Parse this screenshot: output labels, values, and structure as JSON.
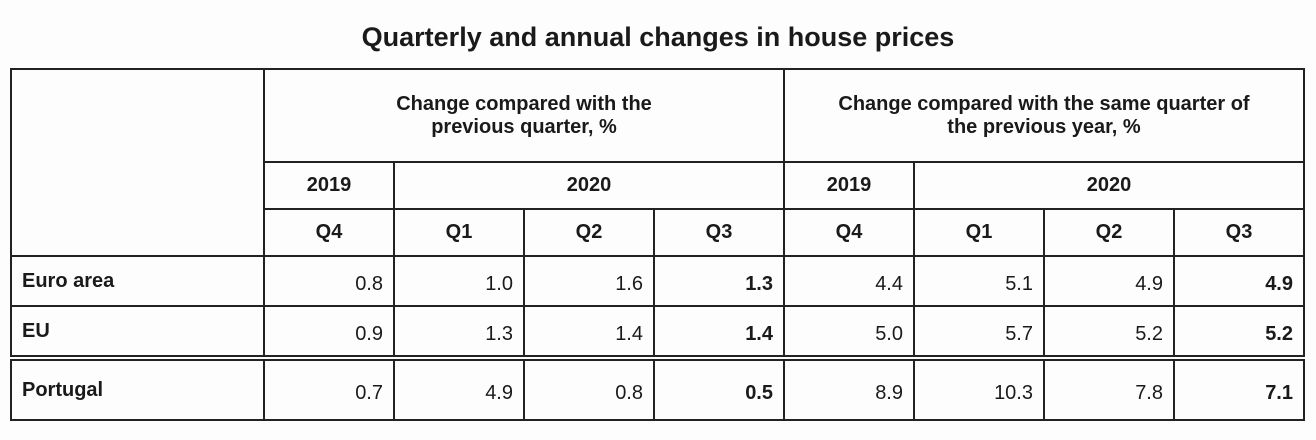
{
  "title": "Quarterly and annual changes in house prices",
  "table": {
    "groups": [
      "Change compared with the previous quarter, %",
      "Change compared with the same quarter of the previous year, %"
    ],
    "years": [
      "2019",
      "2020",
      "2019",
      "2020"
    ],
    "quarters": [
      "Q4",
      "Q1",
      "Q2",
      "Q3",
      "Q4",
      "Q1",
      "Q2",
      "Q3"
    ],
    "rows": [
      {
        "label": "Euro area",
        "values": [
          "0.8",
          "1.0",
          "1.6",
          "1.3",
          "4.4",
          "5.1",
          "4.9",
          "4.9"
        ]
      },
      {
        "label": "EU",
        "values": [
          "0.9",
          "1.3",
          "1.4",
          "1.4",
          "5.0",
          "5.7",
          "5.2",
          "5.2"
        ]
      },
      {
        "label": "Portugal",
        "values": [
          "0.7",
          "4.9",
          "0.8",
          "0.5",
          "8.9",
          "10.3",
          "7.8",
          "7.1"
        ]
      }
    ]
  }
}
